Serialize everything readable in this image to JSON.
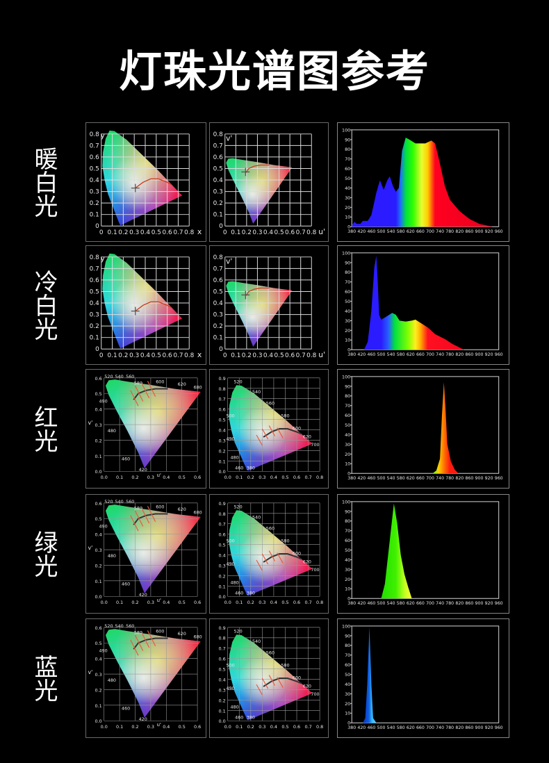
{
  "title": "灯珠光谱图参考",
  "rows": [
    {
      "label": "暖白光",
      "cie_left": "xy_basic",
      "cie_mid": "uv_basic"
    },
    {
      "label": "冷白光",
      "cie_left": "xy_basic",
      "cie_mid": "uv_basic"
    },
    {
      "label": "红光",
      "cie_left": "uv_wl",
      "cie_mid": "xy_wl"
    },
    {
      "label": "绿光",
      "cie_left": "uv_wl",
      "cie_mid": "xy_wl"
    },
    {
      "label": "蓝光",
      "cie_left": "uv_wl",
      "cie_mid": "xy_wl"
    }
  ],
  "cie_types": {
    "xy_basic": {
      "xlabel": "x",
      "ylabel": "y",
      "xlim": [
        0,
        0.8
      ],
      "ylim": [
        0,
        0.8
      ],
      "xticks": [
        "0",
        "0.1",
        "0.2",
        "0.3",
        "0.4",
        "0.5",
        "0.6",
        "0.7",
        "0.8"
      ],
      "yticks": [
        "0",
        "0.1",
        "0.2",
        "0.3",
        "0.4",
        "0.5",
        "0.6",
        "0.7",
        "0.8"
      ],
      "locus": "xy",
      "white_point": [
        0.31,
        0.33
      ],
      "annotations": []
    },
    "uv_basic": {
      "xlabel": "u'",
      "ylabel": "v'",
      "xlim": [
        0,
        0.8
      ],
      "ylim": [
        0,
        0.8
      ],
      "xticks": [
        "0",
        "0.1",
        "0.2",
        "0.3",
        "0.4",
        "0.5",
        "0.6",
        "0.7",
        "0.8"
      ],
      "yticks": [
        "0",
        "0.1",
        "0.2",
        "0.3",
        "0.4",
        "0.5",
        "0.6",
        "0.7",
        "0.8"
      ],
      "locus": "uv",
      "white_point": [
        0.19,
        0.47
      ],
      "annotations": []
    },
    "uv_wl": {
      "xlabel": "u'",
      "ylabel": "v'",
      "xlim": [
        0,
        0.6
      ],
      "ylim": [
        0,
        0.6
      ],
      "xticks": [
        "0.0",
        "0.1",
        "0.2",
        "0.3",
        "0.4",
        "0.5",
        "0.6"
      ],
      "yticks": [
        "0.0",
        "0.1",
        "0.2",
        "0.3",
        "0.4",
        "0.5",
        "0.6"
      ],
      "locus": "uv",
      "white_point": null,
      "annotations": [
        {
          "text": "520",
          "x": 0.03,
          "y": 0.6
        },
        {
          "text": "540",
          "x": 0.08,
          "y": 0.6
        },
        {
          "text": "560",
          "x": 0.15,
          "y": 0.6
        },
        {
          "text": "580",
          "x": 0.22,
          "y": 0.575
        },
        {
          "text": "600",
          "x": 0.36,
          "y": 0.565
        },
        {
          "text": "620",
          "x": 0.5,
          "y": 0.55
        },
        {
          "text": "680",
          "x": 0.62,
          "y": 0.53
        },
        {
          "text": "490",
          "x": -0.005,
          "y": 0.44
        },
        {
          "text": "480",
          "x": 0.05,
          "y": 0.25
        },
        {
          "text": "460",
          "x": 0.14,
          "y": 0.07
        },
        {
          "text": "420",
          "x": 0.25,
          "y": 0.0
        }
      ]
    },
    "xy_wl": {
      "xlabel": "",
      "ylabel": "",
      "xlim": [
        0,
        0.8
      ],
      "ylim": [
        0,
        0.9
      ],
      "xticks": [
        "0.0",
        "0.1",
        "0.2",
        "0.3",
        "0.4",
        "0.5",
        "0.6",
        "0.7",
        "0.8"
      ],
      "yticks": [
        "0.0",
        "0.1",
        "0.2",
        "0.3",
        "0.4",
        "0.5",
        "0.6",
        "0.7",
        "0.8",
        "0.9"
      ],
      "locus": "xy",
      "white_point": null,
      "annotations": [
        {
          "text": "520",
          "x": 0.09,
          "y": 0.85
        },
        {
          "text": "540",
          "x": 0.25,
          "y": 0.75
        },
        {
          "text": "560",
          "x": 0.37,
          "y": 0.64
        },
        {
          "text": "580",
          "x": 0.5,
          "y": 0.52
        },
        {
          "text": "600",
          "x": 0.6,
          "y": 0.4
        },
        {
          "text": "620",
          "x": 0.69,
          "y": 0.32
        },
        {
          "text": "700",
          "x": 0.76,
          "y": 0.27
        },
        {
          "text": "500",
          "x": 0.0,
          "y": 0.52
        },
        {
          "text": "490",
          "x": 0.0,
          "y": 0.3
        },
        {
          "text": "480",
          "x": 0.06,
          "y": 0.12
        },
        {
          "text": "460",
          "x": 0.1,
          "y": 0.02
        },
        {
          "text": "380",
          "x": 0.2,
          "y": 0.02
        }
      ]
    }
  },
  "chart_data": [
    {
      "type": "area",
      "title": "",
      "xlabel": "",
      "ylabel": "",
      "xticks": [
        "380",
        "420",
        "460",
        "500",
        "540",
        "580",
        "620",
        "660",
        "700",
        "740",
        "780",
        "820",
        "860",
        "900",
        "920",
        "960"
      ],
      "yticks": [
        "0",
        "10",
        "20",
        "30",
        "40",
        "50",
        "60",
        "70",
        "80",
        "90",
        "100"
      ],
      "ylim": [
        0,
        100
      ],
      "values": [
        [
          380,
          1
        ],
        [
          390,
          5
        ],
        [
          400,
          3
        ],
        [
          415,
          3
        ],
        [
          425,
          6
        ],
        [
          445,
          6
        ],
        [
          460,
          12
        ],
        [
          480,
          35
        ],
        [
          495,
          48
        ],
        [
          510,
          38
        ],
        [
          525,
          48
        ],
        [
          535,
          52
        ],
        [
          548,
          42
        ],
        [
          560,
          36
        ],
        [
          572,
          40
        ],
        [
          585,
          78
        ],
        [
          600,
          92
        ],
        [
          615,
          90
        ],
        [
          640,
          86
        ],
        [
          680,
          86
        ],
        [
          705,
          89
        ],
        [
          720,
          86
        ],
        [
          740,
          65
        ],
        [
          760,
          42
        ],
        [
          780,
          28
        ],
        [
          820,
          16
        ],
        [
          860,
          8
        ],
        [
          900,
          3
        ],
        [
          935,
          0
        ]
      ],
      "gradient": [
        [
          560,
          "#2a1cff"
        ],
        [
          578,
          "#1e6cff"
        ],
        [
          600,
          "#00e040"
        ],
        [
          630,
          "#30ff00"
        ],
        [
          665,
          "#e8ff30"
        ],
        [
          690,
          "#ffcc00"
        ],
        [
          708,
          "#ff5010"
        ],
        [
          720,
          "#ff0020"
        ],
        [
          960,
          "#e8001e"
        ]
      ]
    },
    {
      "type": "area",
      "title": "",
      "xlabel": "",
      "ylabel": "",
      "xticks": [
        "380",
        "420",
        "460",
        "500",
        "540",
        "580",
        "620",
        "660",
        "700",
        "740",
        "780",
        "820",
        "860",
        "900",
        "920",
        "960"
      ],
      "yticks": [
        "0",
        "10",
        "20",
        "30",
        "40",
        "50",
        "60",
        "70",
        "80",
        "90",
        "100"
      ],
      "ylim": [
        0,
        100
      ],
      "values": [
        [
          430,
          0
        ],
        [
          445,
          8
        ],
        [
          460,
          40
        ],
        [
          472,
          85
        ],
        [
          480,
          97
        ],
        [
          486,
          70
        ],
        [
          492,
          36
        ],
        [
          500,
          31
        ],
        [
          520,
          34
        ],
        [
          545,
          38
        ],
        [
          560,
          36
        ],
        [
          575,
          30
        ],
        [
          600,
          29
        ],
        [
          625,
          30
        ],
        [
          640,
          31
        ],
        [
          665,
          27
        ],
        [
          690,
          23
        ],
        [
          720,
          16
        ],
        [
          760,
          11
        ],
        [
          790,
          6
        ],
        [
          830,
          1
        ],
        [
          840,
          0
        ]
      ],
      "gradient": [
        [
          500,
          "#2a1cff"
        ],
        [
          530,
          "#2860ff"
        ],
        [
          555,
          "#00e040"
        ],
        [
          610,
          "#80ff00"
        ],
        [
          640,
          "#ffee20"
        ],
        [
          660,
          "#ffb000"
        ],
        [
          690,
          "#ff1020"
        ],
        [
          960,
          "#e8001e"
        ]
      ]
    },
    {
      "type": "area",
      "title": "",
      "xlabel": "",
      "ylabel": "",
      "xticks": [
        "380",
        "420",
        "460",
        "500",
        "540",
        "580",
        "620",
        "660",
        "700",
        "740",
        "780",
        "820",
        "860",
        "900",
        "920",
        "960"
      ],
      "yticks": [
        "0",
        "10",
        "20",
        "30",
        "40",
        "50",
        "60",
        "70",
        "80",
        "90",
        "100"
      ],
      "ylim": [
        0,
        100
      ],
      "values": [
        [
          710,
          0
        ],
        [
          725,
          3
        ],
        [
          740,
          15
        ],
        [
          748,
          60
        ],
        [
          756,
          94
        ],
        [
          762,
          70
        ],
        [
          770,
          30
        ],
        [
          785,
          12
        ],
        [
          800,
          4
        ],
        [
          815,
          0
        ]
      ],
      "gradient": [
        [
          712,
          "#60ff20"
        ],
        [
          735,
          "#ffcc00"
        ],
        [
          755,
          "#ff7a00"
        ],
        [
          780,
          "#ff1a10"
        ],
        [
          960,
          "#ff1a10"
        ]
      ]
    },
    {
      "type": "area",
      "title": "",
      "xlabel": "",
      "ylabel": "",
      "xticks": [
        "380",
        "420",
        "460",
        "500",
        "540",
        "580",
        "620",
        "660",
        "700",
        "740",
        "780",
        "820",
        "860",
        "900",
        "920",
        "960"
      ],
      "yticks": [
        "0",
        "10",
        "20",
        "30",
        "40",
        "50",
        "60",
        "70",
        "80",
        "90",
        "100"
      ],
      "ylim": [
        0,
        100
      ],
      "values": [
        [
          500,
          0
        ],
        [
          515,
          15
        ],
        [
          535,
          60
        ],
        [
          552,
          98
        ],
        [
          565,
          78
        ],
        [
          580,
          45
        ],
        [
          595,
          25
        ],
        [
          610,
          12
        ],
        [
          625,
          0
        ]
      ],
      "gradient": [
        [
          500,
          "#20e000"
        ],
        [
          560,
          "#40f000"
        ],
        [
          595,
          "#c0ff20"
        ],
        [
          625,
          "#ffff30"
        ]
      ]
    },
    {
      "type": "area",
      "title": "",
      "xlabel": "",
      "ylabel": "",
      "xticks": [
        "380",
        "420",
        "460",
        "500",
        "540",
        "580",
        "620",
        "660",
        "700",
        "740",
        "780",
        "820",
        "860",
        "900",
        "920",
        "960"
      ],
      "yticks": [
        "0",
        "10",
        "20",
        "30",
        "40",
        "50",
        "60",
        "70",
        "80",
        "90",
        "100"
      ],
      "ylim": [
        0,
        100
      ],
      "values": [
        [
          425,
          0
        ],
        [
          435,
          5
        ],
        [
          443,
          40
        ],
        [
          452,
          99
        ],
        [
          460,
          40
        ],
        [
          467,
          5
        ],
        [
          480,
          0
        ]
      ],
      "gradient": [
        [
          430,
          "#0838c8"
        ],
        [
          450,
          "#1060e0"
        ],
        [
          462,
          "#30b8ff"
        ],
        [
          480,
          "#60d0ff"
        ]
      ]
    }
  ]
}
